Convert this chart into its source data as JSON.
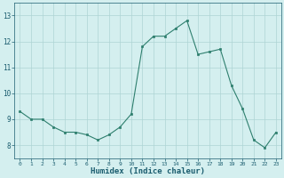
{
  "x": [
    0,
    1,
    2,
    3,
    4,
    5,
    6,
    7,
    8,
    9,
    10,
    11,
    12,
    13,
    14,
    15,
    16,
    17,
    18,
    19,
    20,
    21,
    22,
    23
  ],
  "y": [
    9.3,
    9.0,
    9.0,
    8.7,
    8.5,
    8.5,
    8.4,
    8.2,
    8.4,
    8.7,
    9.2,
    11.8,
    12.2,
    12.2,
    12.5,
    12.8,
    11.5,
    11.6,
    11.7,
    10.3,
    9.4,
    8.2,
    7.9,
    8.5
  ],
  "line_color": "#2e7f6e",
  "bg_color": "#d4efef",
  "grid_color": "#aed4d4",
  "xlabel": "Humidex (Indice chaleur)",
  "xlabel_color": "#1a5c6e",
  "tick_color": "#1a5c6e",
  "ylim": [
    7.5,
    13.5
  ],
  "xlim": [
    -0.5,
    23.5
  ],
  "yticks": [
    8,
    9,
    10,
    11,
    12,
    13
  ],
  "xticks": [
    0,
    1,
    2,
    3,
    4,
    5,
    6,
    7,
    8,
    9,
    10,
    11,
    12,
    13,
    14,
    15,
    16,
    17,
    18,
    19,
    20,
    21,
    22,
    23
  ]
}
